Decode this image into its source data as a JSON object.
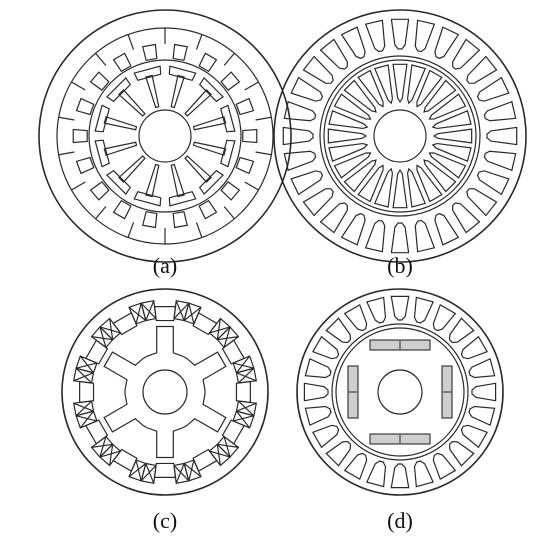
{
  "panels": [
    {
      "id": "a",
      "caption": "(a)",
      "description_icon": "stator-rotor-t-teeth"
    },
    {
      "id": "b",
      "caption": "(b)",
      "description_icon": "dual-slotted-stator-rotor"
    },
    {
      "id": "c",
      "caption": "(c)",
      "description_icon": "switched-reluctance-with-windings"
    },
    {
      "id": "d",
      "caption": "(d)",
      "description_icon": "slotted-stator-with-magnets"
    }
  ],
  "colors": {
    "line": "#2a2a2a",
    "magnet_fill": "#cfcfcf",
    "background": "#ffffff"
  }
}
